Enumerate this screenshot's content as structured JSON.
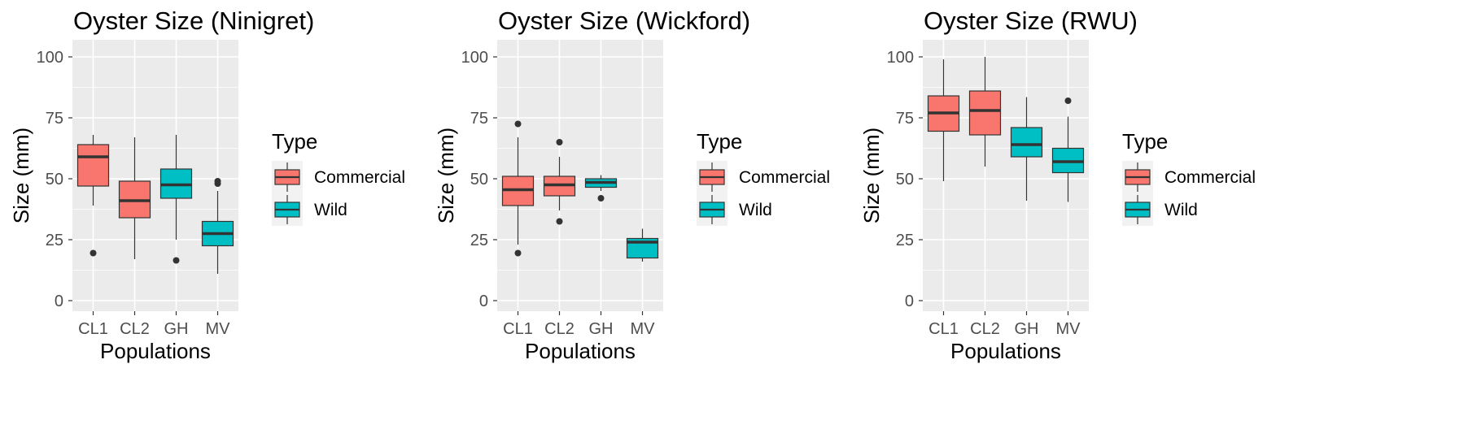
{
  "chart_data": [
    {
      "type": "box",
      "title": "Oyster Size (Ninigret)",
      "xlabel": "Populations",
      "ylabel": "Size (mm)",
      "ylim": [
        0,
        100
      ],
      "yticks": [
        0,
        25,
        50,
        75,
        100
      ],
      "grid": true,
      "categories": [
        "CL1",
        "CL2",
        "GH",
        "MV"
      ],
      "boxes": [
        {
          "category": "CL1",
          "type": "Commercial",
          "whisker_low": 39,
          "q1": 47,
          "median": 59,
          "q3": 64,
          "whisker_high": 68,
          "outliers": [
            19.5
          ]
        },
        {
          "category": "CL2",
          "type": "Commercial",
          "whisker_low": 17,
          "q1": 34,
          "median": 41,
          "q3": 49,
          "whisker_high": 67,
          "outliers": []
        },
        {
          "category": "GH",
          "type": "Wild",
          "whisker_low": 25,
          "q1": 42,
          "median": 47.5,
          "q3": 54,
          "whisker_high": 68,
          "outliers": [
            16.5
          ]
        },
        {
          "category": "MV",
          "type": "Wild",
          "whisker_low": 11,
          "q1": 22.5,
          "median": 27.5,
          "q3": 32.5,
          "whisker_high": 45,
          "outliers": [
            48,
            49
          ]
        }
      ]
    },
    {
      "type": "box",
      "title": "Oyster Size (Wickford)",
      "xlabel": "Populations",
      "ylabel": "Size (mm)",
      "ylim": [
        0,
        100
      ],
      "yticks": [
        0,
        25,
        50,
        75,
        100
      ],
      "grid": true,
      "categories": [
        "CL1",
        "CL2",
        "GH",
        "MV"
      ],
      "boxes": [
        {
          "category": "CL1",
          "type": "Commercial",
          "whisker_low": 23,
          "q1": 39,
          "median": 45.5,
          "q3": 51,
          "whisker_high": 67,
          "outliers": [
            19.5,
            72.5
          ]
        },
        {
          "category": "CL2",
          "type": "Commercial",
          "whisker_low": 37,
          "q1": 43,
          "median": 47.5,
          "q3": 51,
          "whisker_high": 59,
          "outliers": [
            32.5,
            65
          ]
        },
        {
          "category": "GH",
          "type": "Wild",
          "whisker_low": 45,
          "q1": 46.5,
          "median": 48.5,
          "q3": 50,
          "whisker_high": 51.5,
          "outliers": [
            42
          ]
        },
        {
          "category": "MV",
          "type": "Wild",
          "whisker_low": 16,
          "q1": 17.5,
          "median": 24,
          "q3": 25.5,
          "whisker_high": 29.5,
          "outliers": []
        }
      ]
    },
    {
      "type": "box",
      "title": "Oyster Size (RWU)",
      "xlabel": "Populations",
      "ylabel": "Size (mm)",
      "ylim": [
        0,
        100
      ],
      "yticks": [
        0,
        25,
        50,
        75,
        100
      ],
      "grid": true,
      "categories": [
        "CL1",
        "CL2",
        "GH",
        "MV"
      ],
      "boxes": [
        {
          "category": "CL1",
          "type": "Commercial",
          "whisker_low": 49,
          "q1": 69.5,
          "median": 77,
          "q3": 84,
          "whisker_high": 99,
          "outliers": []
        },
        {
          "category": "CL2",
          "type": "Commercial",
          "whisker_low": 55,
          "q1": 68,
          "median": 78,
          "q3": 86,
          "whisker_high": 100,
          "outliers": []
        },
        {
          "category": "GH",
          "type": "Wild",
          "whisker_low": 41,
          "q1": 59,
          "median": 64,
          "q3": 71,
          "whisker_high": 83.5,
          "outliers": []
        },
        {
          "category": "MV",
          "type": "Wild",
          "whisker_low": 40.5,
          "q1": 52.5,
          "median": 57,
          "q3": 62.5,
          "whisker_high": 75.5,
          "outliers": [
            82
          ]
        }
      ]
    }
  ],
  "legend": {
    "title": "Type",
    "items": [
      {
        "label": "Commercial",
        "color": "#F8766D"
      },
      {
        "label": "Wild",
        "color": "#00BFC4"
      }
    ]
  },
  "colors": {
    "panel_bg": "#EBEBEB",
    "grid": "#FFFFFF",
    "box_stroke": "#333333",
    "commercial": "#F8766D",
    "wild": "#00BFC4"
  }
}
